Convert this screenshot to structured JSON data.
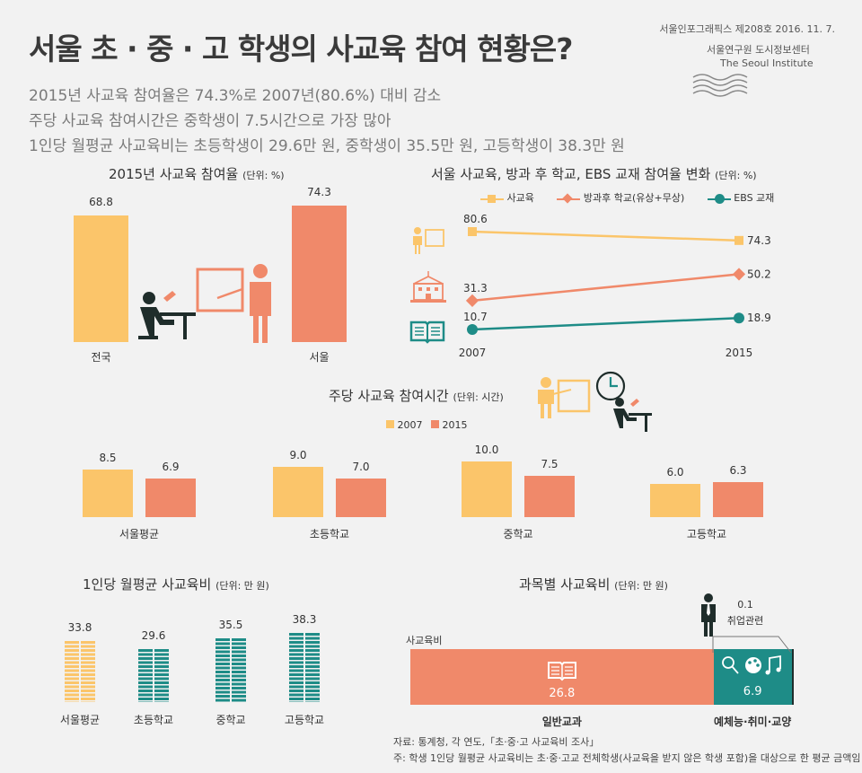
{
  "header": {
    "title": "서울 초 · 중 · 고 학생의 사교육 참여 현황은?",
    "subtitles": [
      "2015년 사교육 참여율은 74.3%로 2007년(80.6%) 대비 감소",
      "주당 사교육 참여시간은 중학생이 7.5시간으로 가장 많아",
      "1인당 월평균 사교육비는 초등학생이 29.6만 원, 중학생이 35.5만 원, 고등학생이 38.3만 원"
    ],
    "publication": "서울인포그래픽스 제208호 2016. 11. 7.",
    "institute_ko": "서울연구원 도시정보센터",
    "institute_en": "The Seoul Institute"
  },
  "colors": {
    "yellow": "#fbc56a",
    "orange": "#f0896a",
    "teal": "#1e8c87",
    "dark": "#1f2d2b"
  },
  "chart_data": [
    {
      "id": "participation_rate",
      "type": "bar",
      "title": "2015년 사교육 참여율",
      "unit": "(단위: %)",
      "categories": [
        "전국",
        "서울"
      ],
      "values": [
        68.8,
        74.3
      ]
    },
    {
      "id": "participation_trend",
      "type": "line",
      "title": "서울 사교육, 방과 후 학교, EBS 교재 참여율 변화",
      "unit": "(단위: %)",
      "x": [
        "2007",
        "2015"
      ],
      "series": [
        {
          "name": "사교육",
          "values": [
            80.6,
            74.3
          ]
        },
        {
          "name": "방과후 학교(유상+무상)",
          "values": [
            31.3,
            50.2
          ]
        },
        {
          "name": "EBS 교재",
          "values": [
            10.7,
            18.9
          ]
        }
      ]
    },
    {
      "id": "weekly_hours",
      "type": "bar",
      "title": "주당 사교육 참여시간",
      "unit": "(단위: 시간)",
      "categories": [
        "서울평균",
        "초등학교",
        "중학교",
        "고등학교"
      ],
      "series": [
        {
          "name": "2007",
          "values": [
            8.5,
            9.0,
            10.0,
            6.0
          ]
        },
        {
          "name": "2015",
          "values": [
            6.9,
            7.0,
            7.5,
            6.3
          ]
        }
      ]
    },
    {
      "id": "monthly_cost",
      "type": "bar",
      "title": "1인당 월평균 사교육비",
      "unit": "(단위: 만 원)",
      "categories": [
        "서울평균",
        "초등학교",
        "중학교",
        "고등학교"
      ],
      "values": [
        33.8,
        29.6,
        35.5,
        38.3
      ]
    },
    {
      "id": "cost_by_subject",
      "type": "bar",
      "title": "과목별 사교육비",
      "unit": "(단위: 만 원)",
      "bar_label": "사교육비",
      "segments": [
        {
          "name": "일반교과",
          "value": 26.8
        },
        {
          "name": "예체능·취미·교양",
          "value": 6.9
        },
        {
          "name": "취업관련",
          "value": 0.1
        }
      ]
    }
  ],
  "notes": [
    "자료: 통계청, 각 연도,「초·중·고 사교육비 조사」",
    "주: 학생 1인당 월평균 사교육비는 초·중·고교 전체학생(사교육을 받지 않은 학생 포함)을 대상으로 한 평균 금액임"
  ]
}
